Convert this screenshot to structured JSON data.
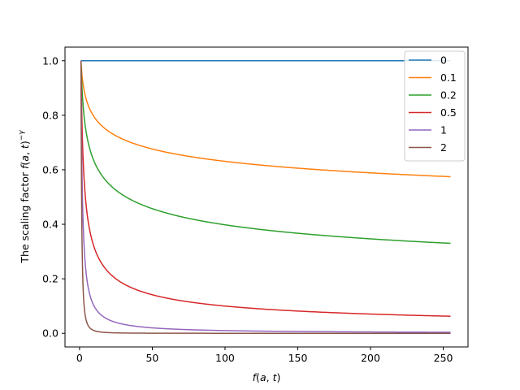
{
  "chart_data": {
    "type": "line",
    "xlabel": "f(a, t)",
    "ylabel": "The scaling factor f(a, t)^{-γ}",
    "xlim": [
      -10,
      267
    ],
    "ylim": [
      -0.05,
      1.05
    ],
    "xticks": [
      0,
      50,
      100,
      150,
      200,
      250
    ],
    "yticks": [
      0.0,
      0.2,
      0.4,
      0.6,
      0.8,
      1.0
    ],
    "grid": false,
    "legend": {
      "placement": "top-right"
    },
    "x_domain": [
      1,
      255
    ],
    "formula": "y = x^(-gamma)",
    "series": [
      {
        "name": "0",
        "gamma": 0,
        "color": "#1f77b4",
        "sample_values": [
          [
            1,
            1.0
          ],
          [
            255,
            1.0
          ]
        ]
      },
      {
        "name": "0.1",
        "gamma": 0.1,
        "color": "#ff7f0e",
        "sample_values": [
          [
            1,
            1.0
          ],
          [
            10,
            0.794
          ],
          [
            50,
            0.676
          ],
          [
            100,
            0.631
          ],
          [
            150,
            0.606
          ],
          [
            200,
            0.589
          ],
          [
            255,
            0.574
          ]
        ]
      },
      {
        "name": "0.2",
        "gamma": 0.2,
        "color": "#2ca02c",
        "sample_values": [
          [
            1,
            1.0
          ],
          [
            10,
            0.631
          ],
          [
            50,
            0.457
          ],
          [
            100,
            0.398
          ],
          [
            150,
            0.367
          ],
          [
            200,
            0.347
          ],
          [
            255,
            0.33
          ]
        ]
      },
      {
        "name": "0.5",
        "gamma": 0.5,
        "color": "#d62728",
        "sample_values": [
          [
            1,
            1.0
          ],
          [
            10,
            0.316
          ],
          [
            50,
            0.141
          ],
          [
            100,
            0.1
          ],
          [
            150,
            0.082
          ],
          [
            200,
            0.071
          ],
          [
            255,
            0.063
          ]
        ]
      },
      {
        "name": "1",
        "gamma": 1,
        "color": "#9467bd",
        "sample_values": [
          [
            1,
            1.0
          ],
          [
            10,
            0.1
          ],
          [
            50,
            0.02
          ],
          [
            100,
            0.01
          ],
          [
            150,
            0.007
          ],
          [
            200,
            0.005
          ],
          [
            255,
            0.004
          ]
        ]
      },
      {
        "name": "2",
        "gamma": 2,
        "color": "#8c564b",
        "sample_values": [
          [
            1,
            1.0
          ],
          [
            10,
            0.01
          ],
          [
            50,
            0.0004
          ],
          [
            100,
            0.0001
          ],
          [
            150,
            4e-05
          ],
          [
            200,
            2.5e-05
          ],
          [
            255,
            1.5e-05
          ]
        ]
      }
    ]
  }
}
